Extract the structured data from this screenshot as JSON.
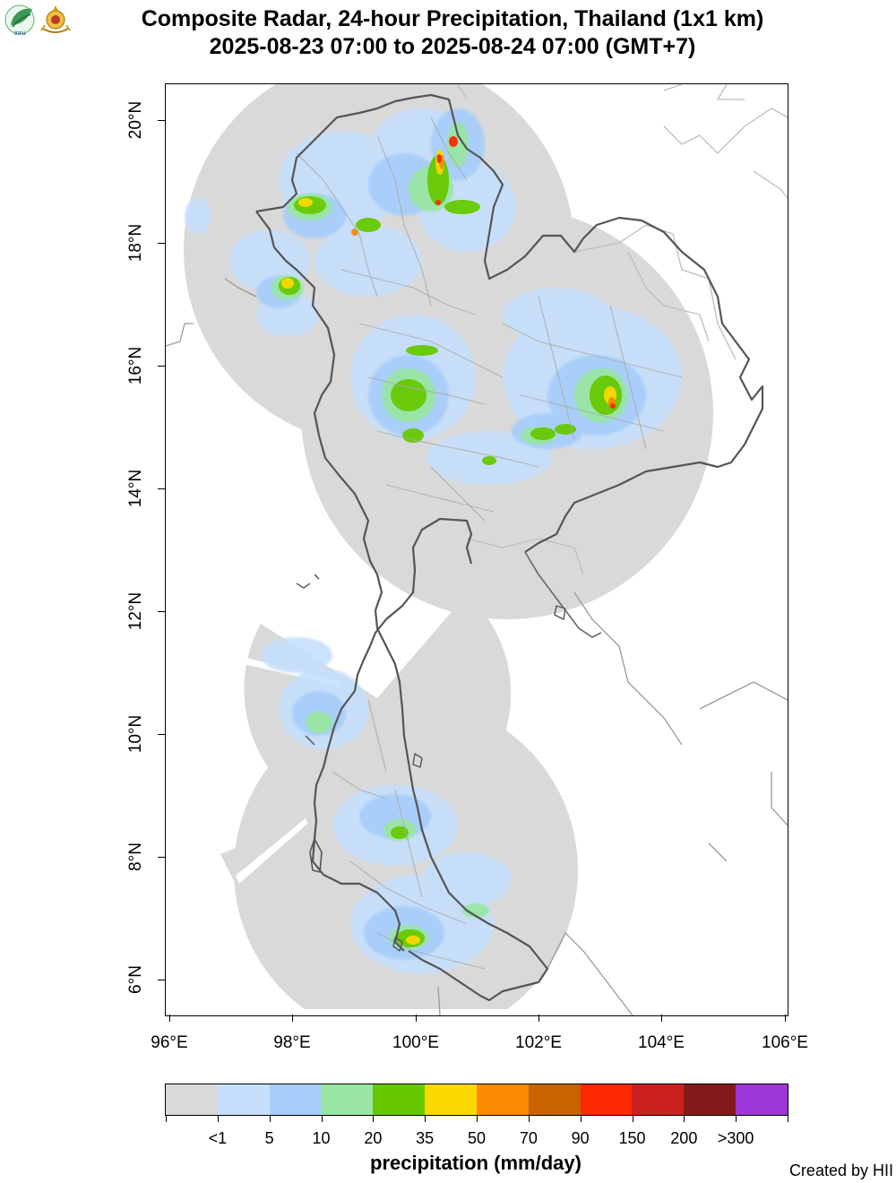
{
  "header": {
    "title_line1": "Composite Radar, 24-hour Precipitation, Thailand (1x1 km)",
    "title_line2": "2025-08-23 07:00 to 2025-08-24 07:00 (GMT+7)",
    "logo_left_text": "สสน"
  },
  "map": {
    "lon_range": [
      96,
      106
    ],
    "lat_range": [
      5.5,
      20.7
    ],
    "x_ticks": [
      "96°E",
      "98°E",
      "100°E",
      "102°E",
      "104°E",
      "106°E"
    ],
    "y_ticks": [
      "6°N",
      "8°N",
      "10°N",
      "12°N",
      "14°N",
      "16°N",
      "18°N",
      "20°N"
    ],
    "colors": {
      "radar_coverage": "#d9d9d9",
      "country_border": "#555555",
      "province_border": "#a9a9a9",
      "neighbor_border": "#bdbdbd"
    }
  },
  "legend": {
    "title": "precipitation (mm/day)",
    "labels": [
      "<1",
      "5",
      "10",
      "20",
      "35",
      "50",
      "70",
      "90",
      "150",
      "200",
      ">300"
    ],
    "colors": [
      "#d9d9d9",
      "#c6dffc",
      "#a6cdfb",
      "#99e6a3",
      "#66c900",
      "#fbd800",
      "#fb8a00",
      "#c86400",
      "#fb2800",
      "#cc2020",
      "#841a1a",
      "#9c37d8"
    ]
  },
  "footer": {
    "credit": "Created by HII"
  }
}
